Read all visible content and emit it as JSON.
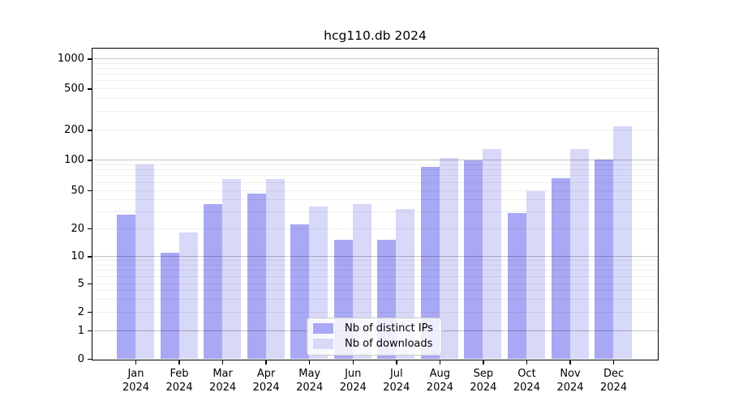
{
  "title": "hcg110.db 2024",
  "colors": {
    "distinct_ips": "#a8a8f4",
    "downloads": "#d8d8f9",
    "axis": "#000000",
    "major_grid": "#c4c4c4",
    "minor_grid": "#efefef",
    "legend_border": "#cccccc"
  },
  "chart_data": {
    "type": "bar",
    "title": "hcg110.db 2024",
    "xlabel": "",
    "ylabel": "",
    "scale": "symlog",
    "grid": true,
    "legend_position": "bottom-center",
    "year": "2024",
    "categories": [
      "Jan",
      "Feb",
      "Mar",
      "Apr",
      "May",
      "Jun",
      "Jul",
      "Aug",
      "Sep",
      "Oct",
      "Nov",
      "Dec"
    ],
    "series": [
      {
        "name": "Nb of distinct IPs",
        "color": "#a8a8f4",
        "values": [
          28,
          11,
          36,
          46,
          22,
          15,
          15,
          86,
          100,
          29,
          66,
          101
        ]
      },
      {
        "name": "Nb of downloads",
        "color": "#d8d8f9",
        "values": [
          91,
          18,
          65,
          65,
          34,
          36,
          32,
          105,
          128,
          49,
          128,
          215
        ]
      }
    ],
    "yticks": [
      0,
      1,
      2,
      5,
      10,
      20,
      50,
      100,
      200,
      500,
      1000
    ],
    "ylim": [
      0,
      1300
    ]
  }
}
